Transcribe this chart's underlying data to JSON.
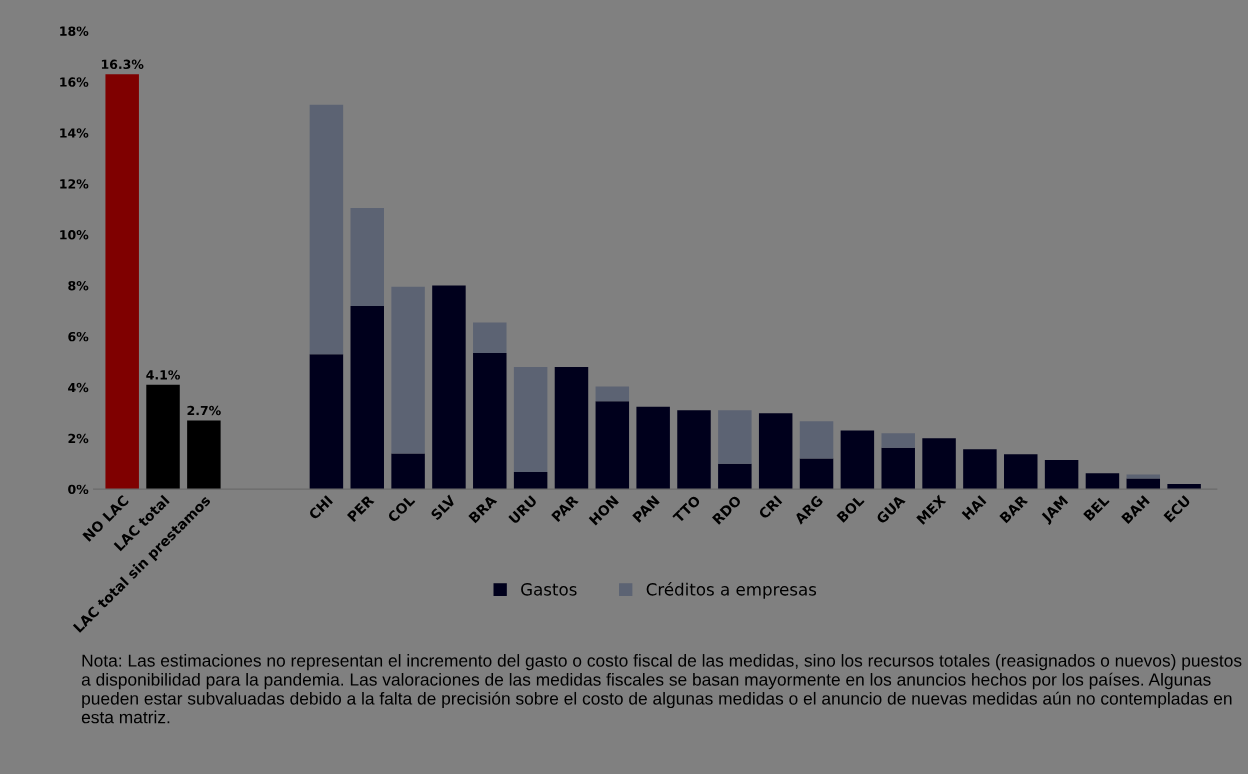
{
  "chart_data": {
    "type": "bar",
    "stacked": true,
    "categories": [
      "NO LAC",
      "LAC total",
      "LAC total sin prestamos",
      null,
      null,
      "CHI",
      "PER",
      "COL",
      "SLV",
      "BRA",
      "URU",
      "PAR",
      "HON",
      "PAN",
      "TTO",
      "RDO",
      "CRI",
      "ARG",
      "BOL",
      "GUA",
      "MEX",
      "HAI",
      "BAR",
      "JAM",
      "BEL",
      "BAH",
      "ECU"
    ],
    "series": [
      {
        "colors": [
          "#7f0000",
          "#000000",
          "#000000",
          null,
          null,
          null,
          null,
          null,
          null,
          null,
          null,
          null,
          null,
          null,
          null,
          null,
          null,
          null,
          null,
          null,
          null,
          null,
          null,
          null,
          null,
          null,
          null
        ],
        "values": [
          16.3,
          4.1,
          2.7,
          null,
          null,
          null,
          null,
          null,
          null,
          null,
          null,
          null,
          null,
          null,
          null,
          null,
          null,
          null,
          null,
          null,
          null,
          null,
          null,
          null,
          null,
          null,
          null
        ],
        "value_labels": [
          "16.3%",
          "4.1%",
          "2.7%",
          null,
          null,
          null,
          null,
          null,
          null,
          null,
          null,
          null,
          null,
          null,
          null,
          null,
          null,
          null,
          null,
          null,
          null,
          null,
          null,
          null,
          null,
          null,
          null
        ]
      },
      {
        "name": "Gastos",
        "color": "#00001c",
        "values": [
          null,
          null,
          null,
          null,
          null,
          5.3,
          7.2,
          1.4,
          8.0,
          5.35,
          0.67,
          4.8,
          3.45,
          3.24,
          3.1,
          1.0,
          2.98,
          1.2,
          2.3,
          1.63,
          2.0,
          1.57,
          1.37,
          1.15,
          0.63,
          0.42,
          0.2
        ]
      },
      {
        "name": "Créditos a empresas",
        "color": "#5c6373",
        "values": [
          null,
          null,
          null,
          null,
          null,
          9.8,
          3.85,
          6.55,
          null,
          1.2,
          4.13,
          null,
          0.58,
          null,
          null,
          2.1,
          null,
          1.47,
          null,
          0.57,
          null,
          null,
          null,
          null,
          null,
          0.16,
          null
        ]
      }
    ],
    "ylim": [
      0,
      18
    ],
    "yticks": [
      {
        "value": 0,
        "label": "0%"
      },
      {
        "value": 2,
        "label": "2%"
      },
      {
        "value": 4,
        "label": "4%"
      },
      {
        "value": 6,
        "label": "6%"
      },
      {
        "value": 8,
        "label": "8%"
      },
      {
        "value": 10,
        "label": "10%"
      },
      {
        "value": 12,
        "label": "12%"
      },
      {
        "value": 14,
        "label": "14%"
      },
      {
        "value": 16,
        "label": "16%"
      },
      {
        "value": 18,
        "label": "18%"
      }
    ],
    "grid": false,
    "legend": "bottom",
    "annotations": [
      "Nota: Las estimaciones no representan el incremento del gasto o costo fiscal de las medidas, sino los recursos totales (reasignados o nuevos) puestos a disponibilidad para la pandemia. Las valoraciones de las medidas fiscales se basan mayormente en los anuncios hechos por los países. Algunas pueden estar subvaluadas debido a la falta de precisión sobre el costo de algunas medidas o el anuncio de nuevas medidas aún no contempladas en esta matriz."
    ]
  }
}
